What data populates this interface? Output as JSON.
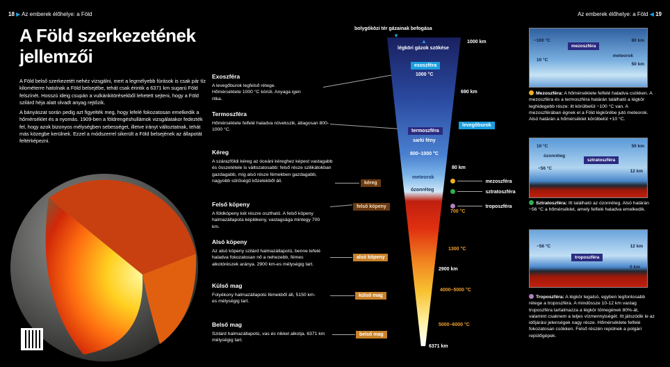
{
  "header": {
    "left_page": "18",
    "left_title": "Az emberek élőhelye: a Föld",
    "right_title": "Az emberek élőhelye: a Föld",
    "right_page": "19"
  },
  "title": "A Föld szerkezetének jellemzői",
  "intro": [
    "A Föld belső szerkezetét nehéz vizsgálni, mert a legmélyebb fúrások is csak pár tíz kilométerre hatolnak a Föld belsejébe, tehát csak érintik a 6371 km sugarú Föld felszínét. Hosszú ideig csupán a vulkánkitörésekből lehetett sejteni, hogy a Föld szilárd héja alatt olvadt anyag rejtőzik.",
    "A bányászat során pedig azt figyelték meg, hogy lefelé fokozatosan emelkedik a hőmérséklet és a nyomás. 1909-ben a földrengéshullámok vizsgálatakor fedezték fel, hogy azok bizonyos mélységben sebességet, illetve irányt változtatnak, tehát más közegbe kerülnek. Ezzel a módszerrel sikerült a Föld belsejének az állapotát feltérképezni."
  ],
  "layers": [
    {
      "title": "Exoszféra",
      "text": "A levegőburok legfelső rétege. Hőmérséklete 1000 °C körüli. Anyaga igen ritka."
    },
    {
      "title": "Termoszféra",
      "text": "Hőmérséklete felfelé haladva növekszik, átlagosan 800-1000 °C."
    },
    {
      "title": "Kéreg",
      "text": "A szárazföldi kéreg az óceáni kéreghez képest vastagabb és összetétele is változatosabb: felső része szilikátokban gazdagabb, míg alsó része fémekben gazdagabb, nagyobb sűrűségű kőzetekből áll."
    },
    {
      "title": "Felső köpeny",
      "text": "A földköpeny két részre osztható. A felső köpeny halmazállapota képlékeny, vastagsága mintegy 700 km."
    },
    {
      "title": "Alsó köpeny",
      "text": "Az alsó köpeny szilárd halmazállapotú, benne lefelé haladva fokozatosan nő a nehezebb, fémes alkotórészek aránya. 2900 km-es mélységig tart."
    },
    {
      "title": "Külső mag",
      "text": "Folyékony halmazállapotú fémekből áll, 5150 km-es mélységig tart."
    },
    {
      "title": "Belső mag",
      "text": "Szilárd halmazállapotú, vas és nikkel alkotja. 6371 km mélységig tart."
    }
  ],
  "diagram": {
    "top_in": "bolygóközi tér gázainak befogása",
    "top_out": "légköri gázok szökése",
    "exosphere": "exoszféra",
    "exo_temp": "1000 °C",
    "thermosphere": "termoszféra",
    "aurora": "sarki fény",
    "thermo_temp": "800–1000 °C",
    "meteors": "meteorok",
    "ozone": "ózonréteg",
    "atmosphere": "levegőburok",
    "crust": "kéreg",
    "upper_mantle": "felső köpeny",
    "lower_mantle": "alsó köpeny",
    "outer_core": "külső mag",
    "inner_core": "belső mag",
    "km1000": "1000 km",
    "km690": "690 km",
    "km80": "80 km",
    "km2900": "2900 km",
    "km6371": "6371 km",
    "t700": "700 °C",
    "t1300": "1300 °C",
    "t4000": "4000–5000 °C",
    "t5000": "5000–6000 °C",
    "meso": "mezoszféra",
    "strato": "sztratoszféra",
    "tropo": "troposzféra"
  },
  "panels": {
    "meso": {
      "t1": "−100 °C",
      "t2": "10 °C",
      "k1": "80 km",
      "k2": "50 km",
      "name": "mezoszféra",
      "meteor": "meteorok",
      "head": "Mezoszféra:",
      "text": " A hőmérséklete felfelé haladva csökken. A mezoszféra és a termoszféra határán található a légkör leghidegebb része: itt körülbelül −100 °C van. A mezoszférában égnek el a Föld légkörébe jutó meteorok. Alsó határán a hőmérséklet körülbelül +10 °C."
    },
    "strato": {
      "t1": "10 °C",
      "t2": "−56 °C",
      "k1": "50 km",
      "k2": "12 km",
      "name": "sztratoszféra",
      "ozone": "ózonréteg",
      "head": "Sztratoszféra:",
      "text": " Itt található az ózonréteg. Alsó határán −56 °C a hőmérséklet, amely felfelé haladva emelkedik."
    },
    "tropo": {
      "t1": "−56 °C",
      "k1": "12 km",
      "k2": "0 km",
      "name": "troposzféra",
      "head": "Troposzféra:",
      "text": " A légkör legalsó, egyben legfontosabb rétege a troposzféra. A mindössze 10-12 km vastag troposzféra tartalmazza a légkör tömegének 80%-át, valamint csaknem a teljes vízmennyiségét. Itt játszódik le az időjárási jelenségek nagy része. Hőmérséklete felfelé fokozatosan csökken. Felső részén repülnek a polgári repülőgépek."
    }
  },
  "colors": {
    "meso": "#f0b020",
    "strato": "#30b050",
    "tropo": "#b080c0",
    "accent": "#1aa0e0"
  }
}
